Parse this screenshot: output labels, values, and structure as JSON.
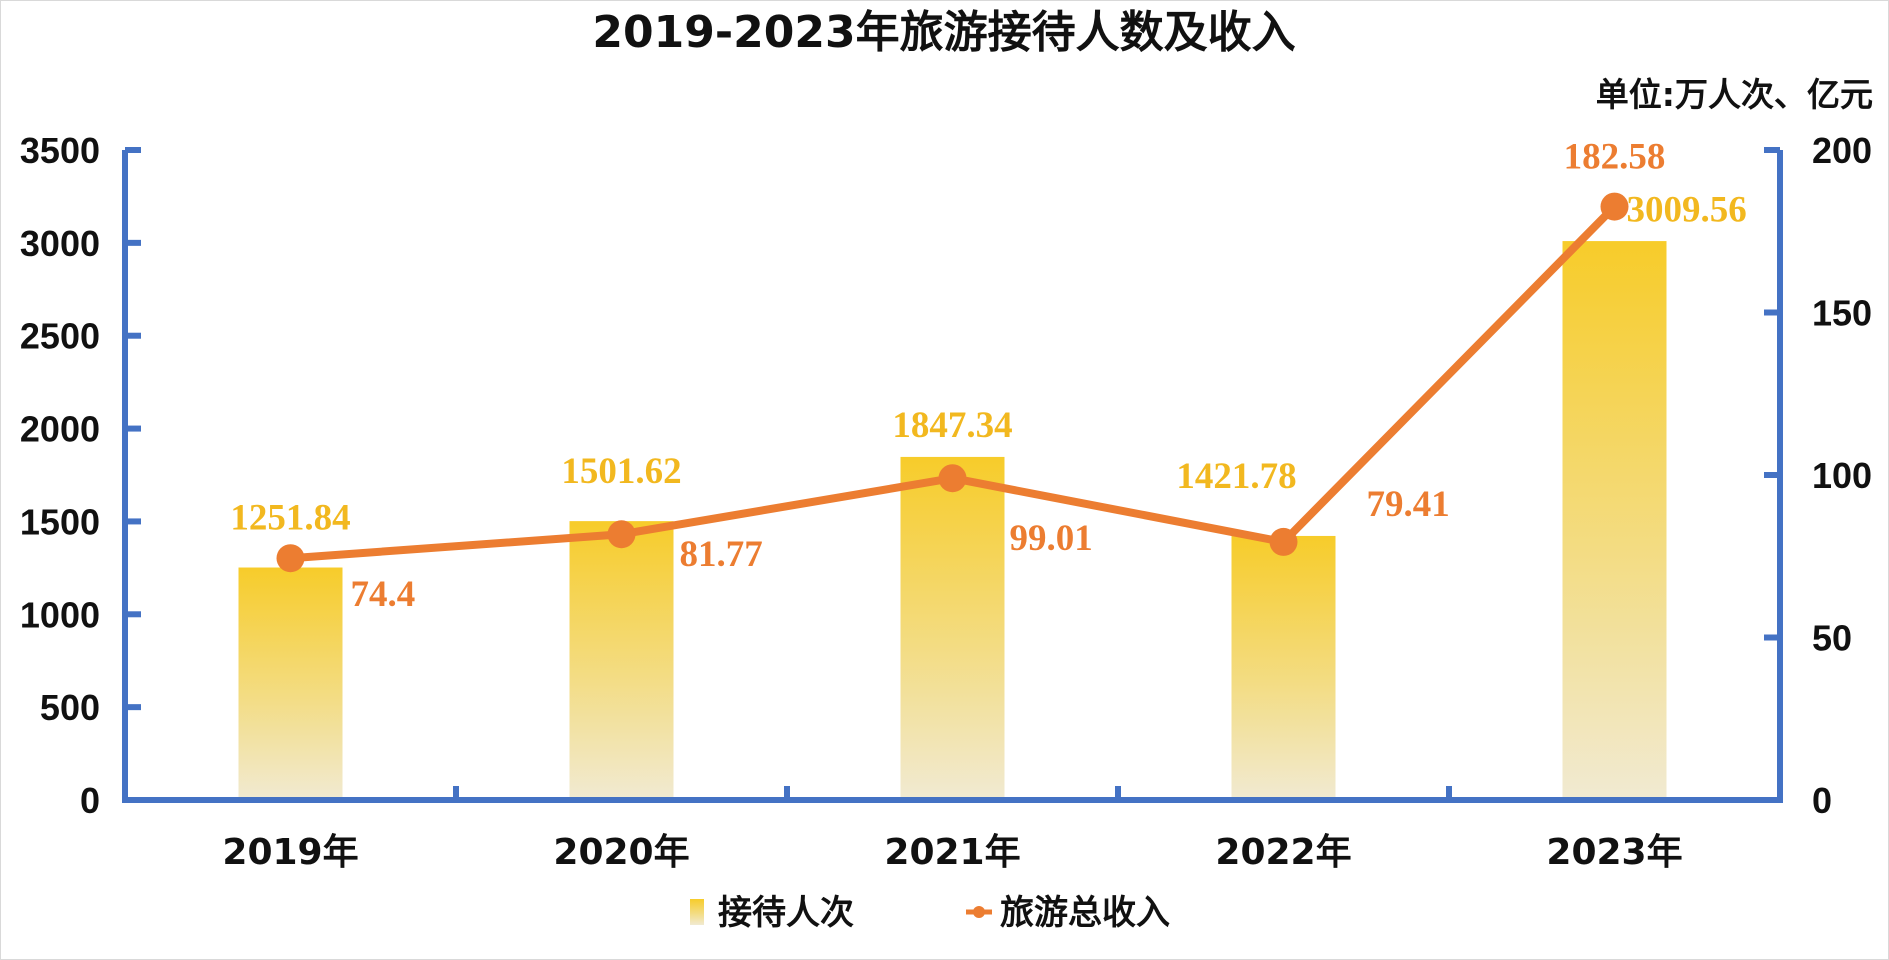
{
  "chart_data": {
    "type": "bar",
    "title": "2019-2023年旅游接待人数及收入",
    "unit_note": "单位:万人次、亿元",
    "categories": [
      "2019年",
      "2020年",
      "2021年",
      "2022年",
      "2023年"
    ],
    "series": [
      {
        "name": "接待人次",
        "type": "bar",
        "axis": "left",
        "values": [
          1251.84,
          1501.62,
          1847.34,
          1421.78,
          3009.56
        ],
        "labels": [
          "1251.84",
          "1501.62",
          "1847.34",
          "1421.78",
          "3009.56"
        ],
        "color": "#f7cf2f"
      },
      {
        "name": "旅游总收入",
        "type": "line",
        "axis": "right",
        "values": [
          74.4,
          81.77,
          99.01,
          79.41,
          182.58
        ],
        "labels": [
          "74.4",
          "81.77",
          "99.01",
          "79.41",
          "182.58"
        ],
        "color": "#ec7d31"
      }
    ],
    "y_left": {
      "min": 0,
      "max": 3500,
      "ticks": [
        "0",
        "500",
        "1000",
        "1500",
        "2000",
        "2500",
        "3000",
        "3500"
      ]
    },
    "y_right": {
      "min": 0,
      "max": 200,
      "ticks": [
        "0",
        "50",
        "100",
        "150",
        "200"
      ]
    },
    "axis_color": "#4472c4",
    "grid": false,
    "legend_position": "bottom"
  }
}
